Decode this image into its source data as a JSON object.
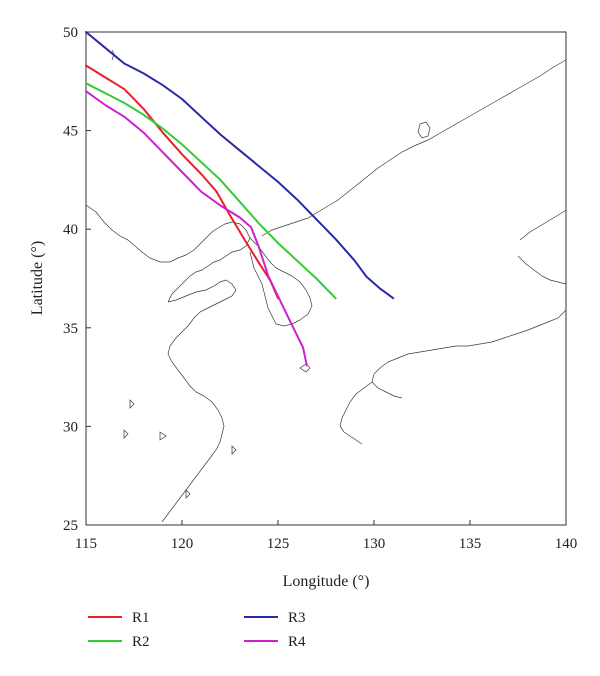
{
  "chart_data": {
    "type": "line",
    "xlabel": "Longitude (°)",
    "ylabel": "Latitude (°)",
    "xlim": [
      115,
      140
    ],
    "ylim": [
      25,
      50
    ],
    "x_ticks": [
      "115",
      "120",
      "125",
      "130",
      "135",
      "140"
    ],
    "y_ticks": [
      "25",
      "30",
      "35",
      "40",
      "45",
      "50"
    ],
    "legend_position": "below",
    "series": [
      {
        "name": "R1",
        "color": "#e8202a",
        "points": [
          [
            115.0,
            48.3
          ],
          [
            116.0,
            47.7
          ],
          [
            117.0,
            47.1
          ],
          [
            118.0,
            46.1
          ],
          [
            119.0,
            44.9
          ],
          [
            120.0,
            43.8
          ],
          [
            121.0,
            42.8
          ],
          [
            121.8,
            41.9
          ],
          [
            122.5,
            40.7
          ],
          [
            123.3,
            39.4
          ],
          [
            124.0,
            38.3
          ],
          [
            124.6,
            37.4
          ],
          [
            125.0,
            36.5
          ]
        ]
      },
      {
        "name": "R3",
        "color": "#2a2aa8",
        "points": [
          [
            115.0,
            50.0
          ],
          [
            116.0,
            49.2
          ],
          [
            117.0,
            48.4
          ],
          [
            118.0,
            47.9
          ],
          [
            119.0,
            47.3
          ],
          [
            120.0,
            46.6
          ],
          [
            121.0,
            45.7
          ],
          [
            122.0,
            44.8
          ],
          [
            123.0,
            44.0
          ],
          [
            124.0,
            43.2
          ],
          [
            125.0,
            42.4
          ],
          [
            126.0,
            41.5
          ],
          [
            127.0,
            40.5
          ],
          [
            128.0,
            39.5
          ],
          [
            129.0,
            38.4
          ],
          [
            129.6,
            37.6
          ],
          [
            130.3,
            37.0
          ],
          [
            131.0,
            36.5
          ]
        ]
      },
      {
        "name": "R2",
        "color": "#33cc33",
        "points": [
          [
            115.0,
            47.4
          ],
          [
            116.0,
            46.9
          ],
          [
            117.0,
            46.4
          ],
          [
            118.0,
            45.8
          ],
          [
            119.0,
            45.1
          ],
          [
            120.0,
            44.3
          ],
          [
            121.0,
            43.4
          ],
          [
            122.0,
            42.5
          ],
          [
            123.0,
            41.4
          ],
          [
            124.0,
            40.3
          ],
          [
            125.0,
            39.3
          ],
          [
            126.0,
            38.4
          ],
          [
            127.0,
            37.5
          ],
          [
            127.5,
            37.0
          ],
          [
            128.0,
            36.5
          ]
        ]
      },
      {
        "name": "R4",
        "color": "#cc22cc",
        "points": [
          [
            115.0,
            47.0
          ],
          [
            116.0,
            46.3
          ],
          [
            117.0,
            45.7
          ],
          [
            118.0,
            44.9
          ],
          [
            119.0,
            43.9
          ],
          [
            120.0,
            42.9
          ],
          [
            121.0,
            41.9
          ],
          [
            122.0,
            41.2
          ],
          [
            123.0,
            40.6
          ],
          [
            123.6,
            40.1
          ],
          [
            124.0,
            39.1
          ],
          [
            124.5,
            37.6
          ],
          [
            125.0,
            36.6
          ],
          [
            125.6,
            35.4
          ],
          [
            126.0,
            34.6
          ],
          [
            126.3,
            34.0
          ],
          [
            126.5,
            33.1
          ]
        ]
      }
    ]
  }
}
